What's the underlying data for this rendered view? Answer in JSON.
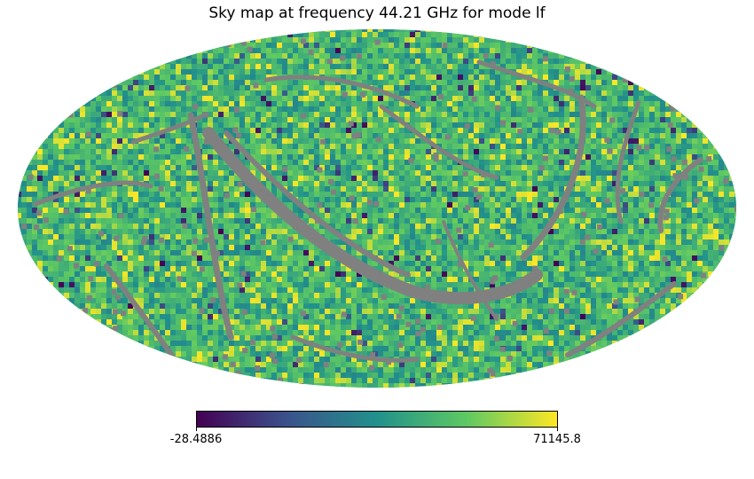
{
  "chart_data": {
    "type": "heatmap",
    "projection": "mollweide",
    "title": "Sky map at frequency 44.21 GHz for mode lf",
    "colormap": "viridis",
    "colormap_stops": [
      "#440154",
      "#3b528b",
      "#21918c",
      "#5ec962",
      "#fde725"
    ],
    "bad_color": "#808080",
    "value_range": [
      -28.4886,
      71145.8
    ],
    "colorbar": {
      "orientation": "horizontal",
      "min_label": "-28.4886",
      "max_label": "71145.8"
    },
    "background_color": "#ffffff"
  }
}
